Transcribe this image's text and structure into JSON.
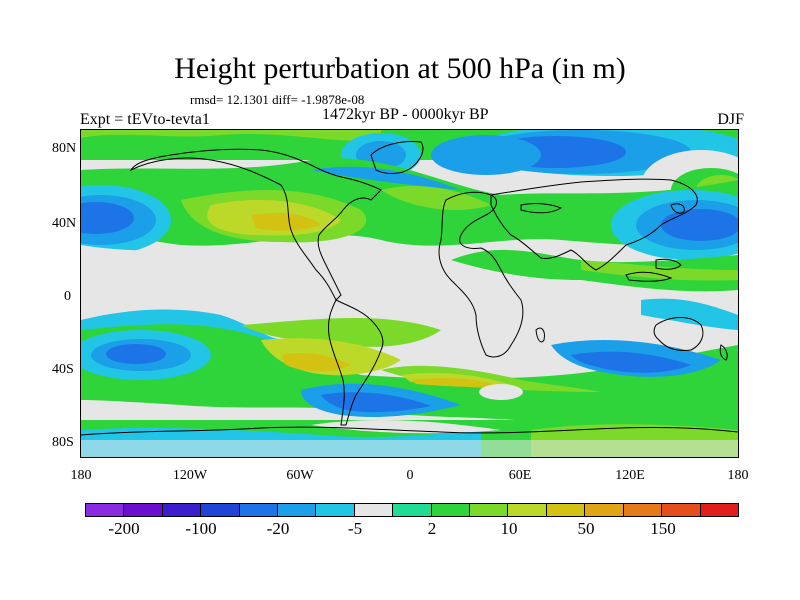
{
  "header": {
    "title": "Height perturbation at 500 hPa (in m)",
    "stats": "rmsd= 12.1301 diff= -1.9878e-08",
    "experiment": "Expt = tEVto-tevta1",
    "period": "1472kyr BP - 0000kyr BP",
    "season": "DJF"
  },
  "axes": {
    "lat_labels": [
      "80N",
      "40N",
      "0",
      "40S",
      "80S"
    ],
    "lon_labels": [
      "180",
      "120W",
      "60W",
      "0",
      "60E",
      "120E",
      "180"
    ]
  },
  "colorbar": {
    "labels": [
      "-200",
      "-100",
      "-20",
      "-5",
      "2",
      "10",
      "50",
      "150"
    ],
    "colors": [
      "#8a2be2",
      "#6a0fd0",
      "#3b1fcf",
      "#1f45d6",
      "#1d74e6",
      "#1a9fe8",
      "#22c5e6",
      "#e6e6e6",
      "#20dc95",
      "#2ed43a",
      "#7bd92a",
      "#bcd92a",
      "#d4c212",
      "#e0a514",
      "#e57a18",
      "#e64d1c",
      "#e01d1a"
    ]
  },
  "map": {
    "background_color": "#e6e6e6",
    "coast_color": "#000000"
  }
}
